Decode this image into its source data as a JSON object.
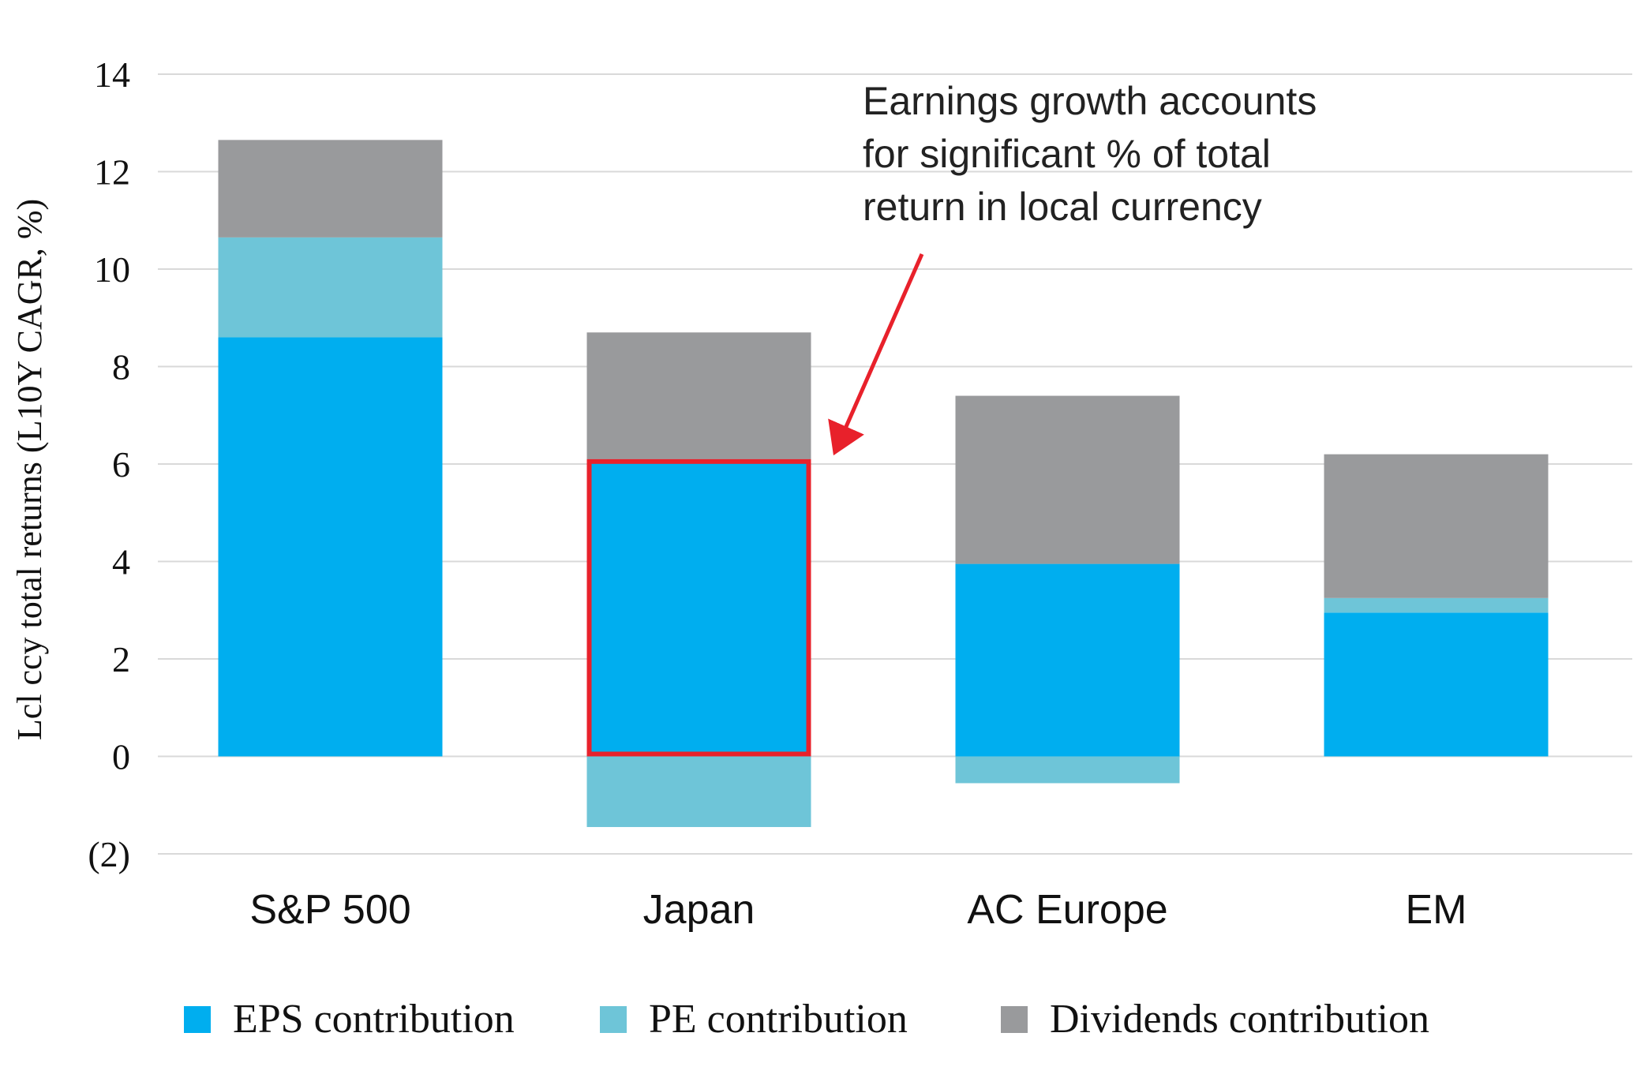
{
  "chart_data": {
    "type": "bar",
    "stacked": true,
    "categories": [
      "S&P 500",
      "Japan",
      "AC Europe",
      "EM"
    ],
    "series": [
      {
        "name": "EPS contribution",
        "color": "#00AEEF",
        "values": [
          8.6,
          6.1,
          3.95,
          2.95
        ]
      },
      {
        "name": "PE contribution",
        "color": "#6EC5D8",
        "values": [
          2.05,
          -1.45,
          -0.55,
          0.3
        ]
      },
      {
        "name": "Dividends contribution",
        "color": "#999A9C",
        "values": [
          2.0,
          2.6,
          3.45,
          2.95
        ]
      }
    ],
    "ylabel": "Lcl ccy total returns (L10Y CAGR, %)",
    "ylim": [
      -2,
      14
    ],
    "yticks": [
      -2,
      0,
      2,
      4,
      6,
      8,
      10,
      12,
      14
    ],
    "ytick_labels": [
      "(2)",
      "0",
      "2",
      "4",
      "6",
      "8",
      "10",
      "12",
      "14"
    ],
    "grid": true,
    "legend_position": "bottom",
    "highlight": {
      "category": "Japan",
      "series": "EPS contribution",
      "color": "#E8212B"
    },
    "annotation": {
      "lines": [
        "Earnings growth accounts",
        "for significant % of total",
        "return in local currency"
      ],
      "arrow_color": "#E8212B"
    }
  }
}
